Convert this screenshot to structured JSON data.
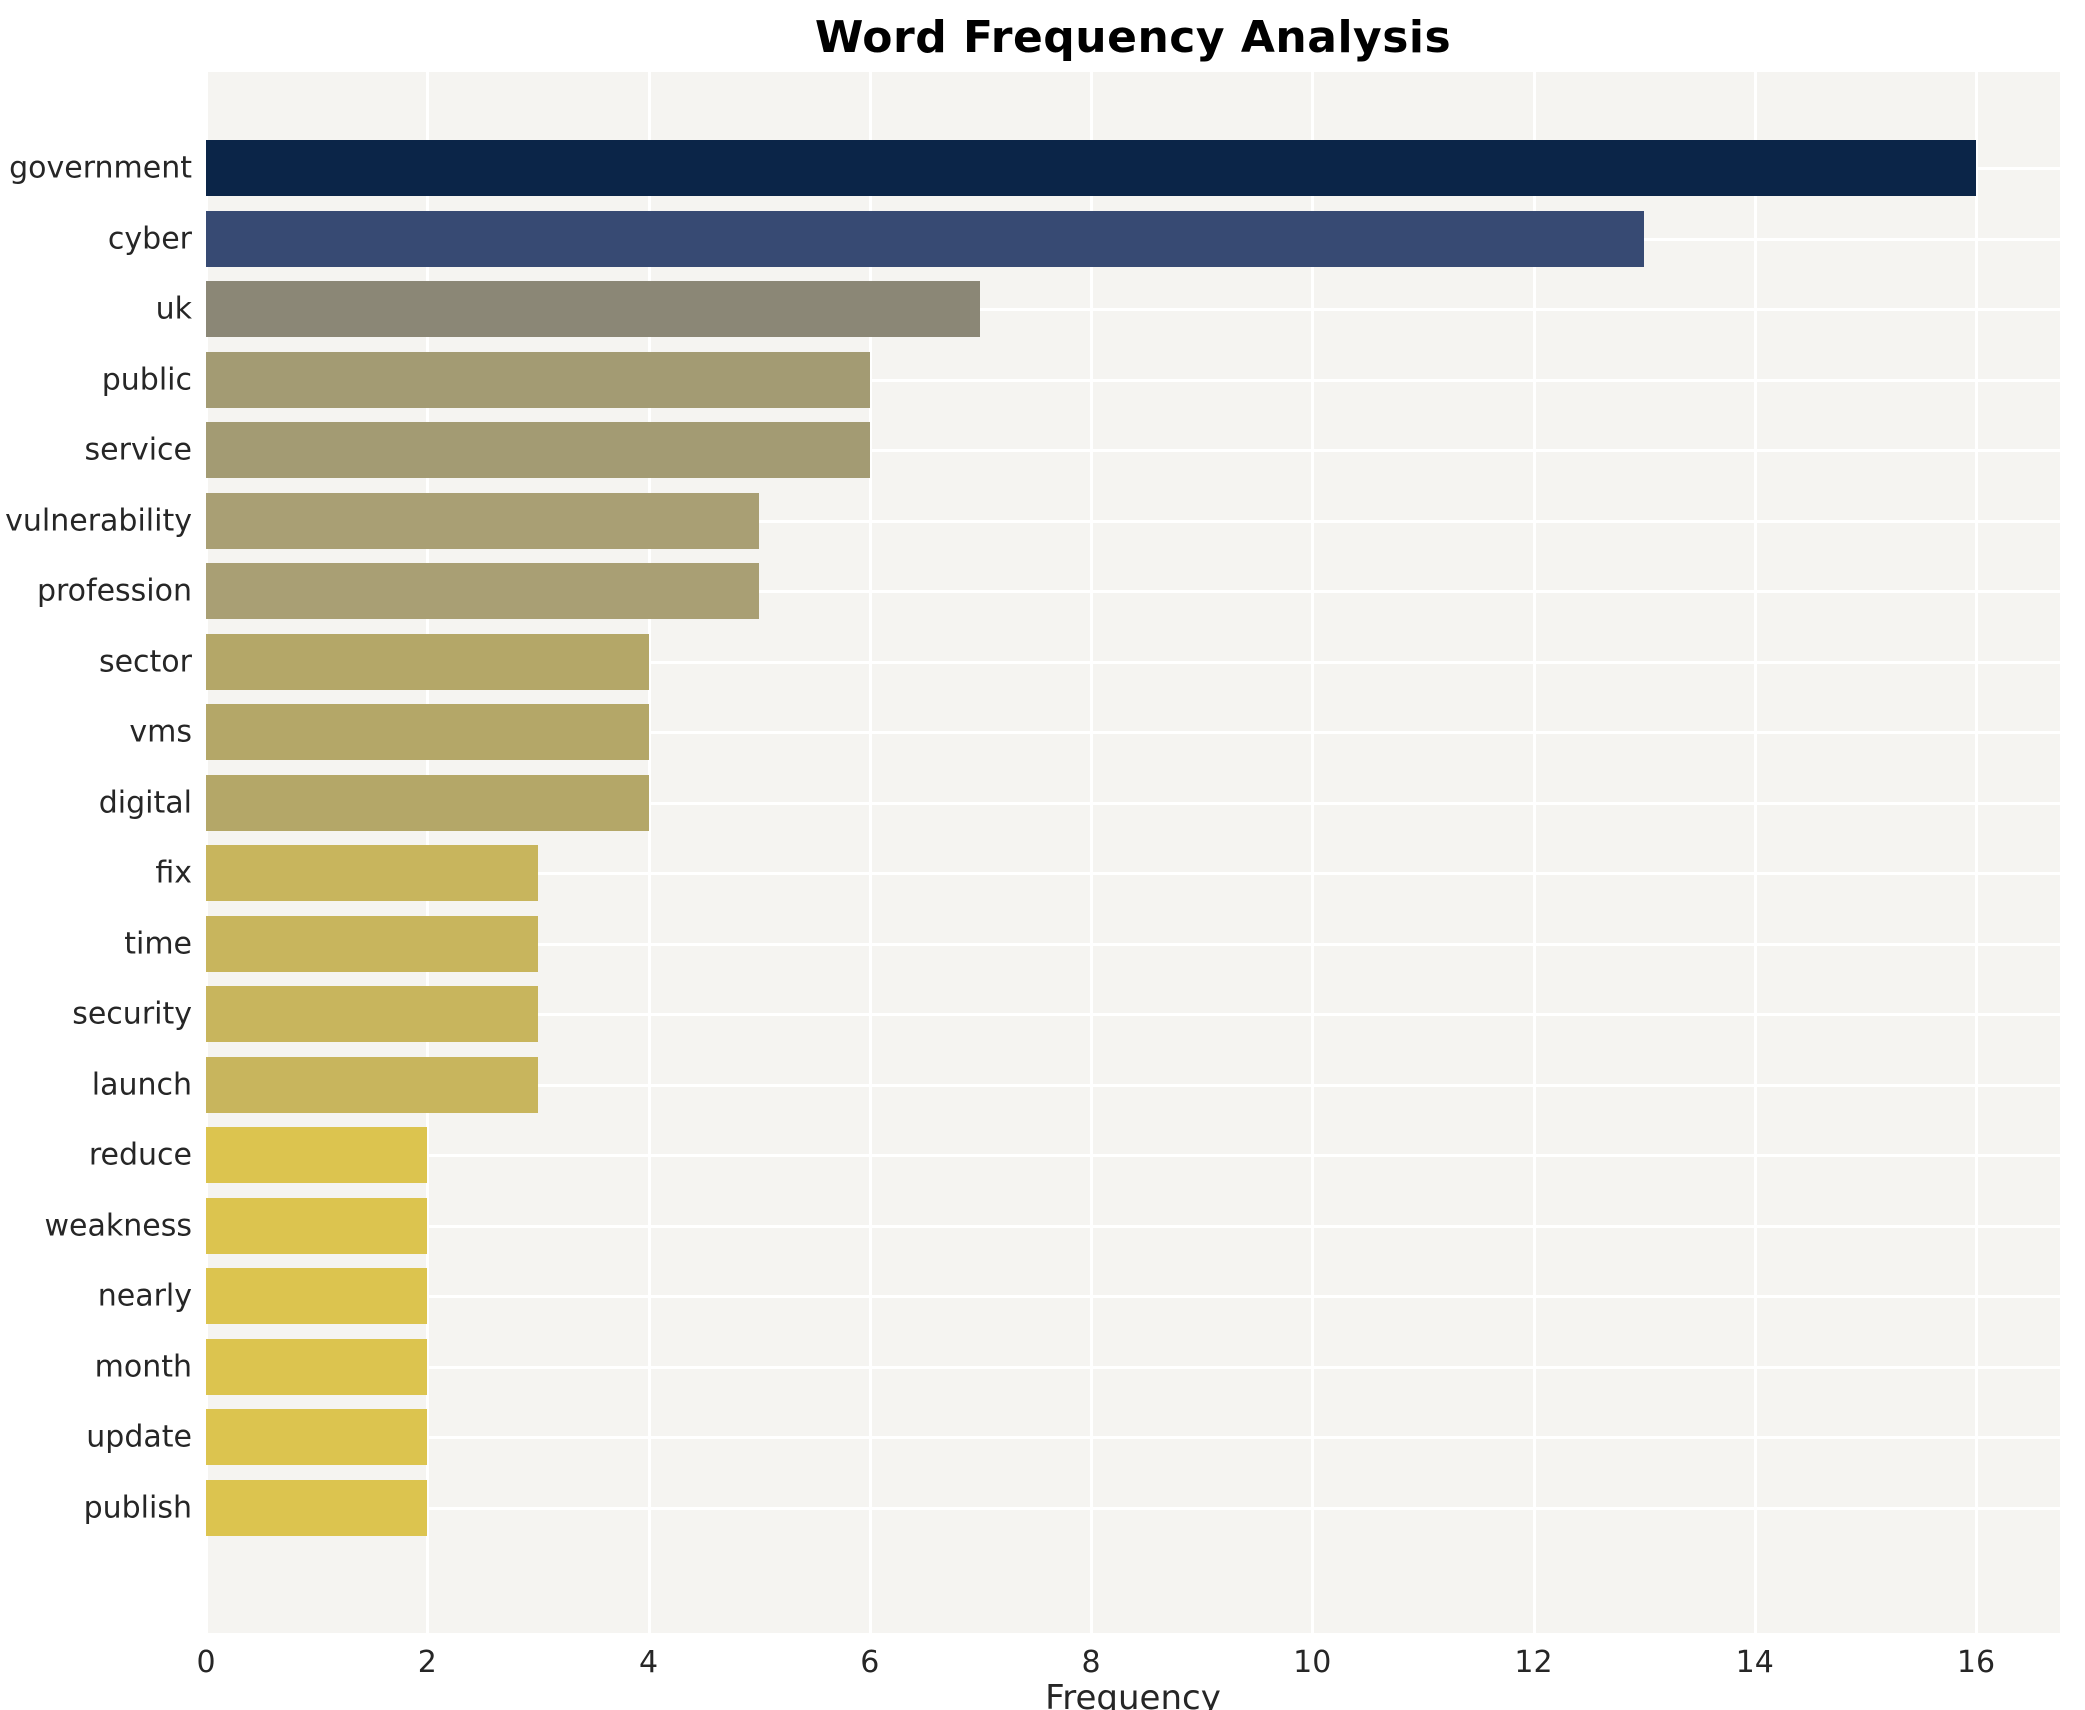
{
  "chart_data": {
    "type": "bar",
    "orientation": "horizontal",
    "title": "Word Frequency Analysis",
    "xlabel": "Frequency",
    "ylabel": "",
    "categories": [
      "government",
      "cyber",
      "uk",
      "public",
      "service",
      "vulnerability",
      "profession",
      "sector",
      "vms",
      "digital",
      "fix",
      "time",
      "security",
      "launch",
      "reduce",
      "weakness",
      "nearly",
      "month",
      "update",
      "publish"
    ],
    "values": [
      16,
      13,
      7,
      6,
      6,
      5,
      5,
      4,
      4,
      4,
      3,
      3,
      3,
      3,
      2,
      2,
      2,
      2,
      2,
      2
    ],
    "bar_colors": [
      "#0b2548",
      "#374a73",
      "#8b8776",
      "#a39b73",
      "#a39b73",
      "#a99f74",
      "#a99f74",
      "#b4a768",
      "#b4a768",
      "#b4a768",
      "#c8b55d",
      "#c8b55d",
      "#c8b55d",
      "#c8b55d",
      "#dcc44f",
      "#dcc44f",
      "#dcc44f",
      "#dcc44f",
      "#dcc44f",
      "#dcc44f"
    ],
    "xticks": [
      0,
      2,
      4,
      6,
      8,
      10,
      12,
      14,
      16
    ],
    "xlim": [
      0,
      16.76
    ],
    "grid": true,
    "legend": "none",
    "colors": {
      "plot_background": "#f5f4f1",
      "grid_line": "#ffffff",
      "text": "#262626",
      "title_text": "#000000"
    }
  }
}
